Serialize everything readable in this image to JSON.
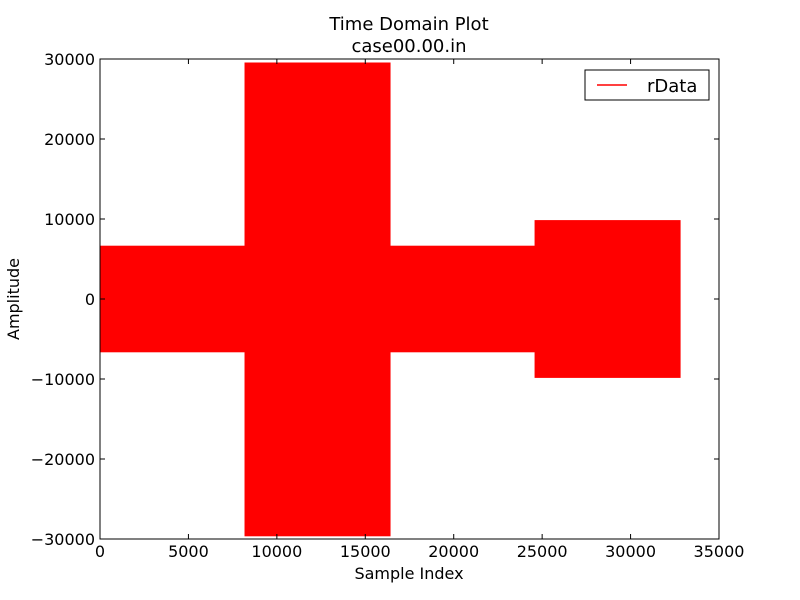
{
  "chart_data": {
    "type": "area",
    "title": "Time Domain Plot",
    "subtitle": "case00.00.in",
    "xlabel": "Sample Index",
    "ylabel": "Amplitude",
    "xlim": [
      0,
      35000
    ],
    "ylim": [
      -30000,
      30000
    ],
    "x_ticks": [
      0,
      5000,
      10000,
      15000,
      20000,
      25000,
      30000,
      35000
    ],
    "y_ticks": [
      -30000,
      -20000,
      -10000,
      0,
      10000,
      20000,
      30000
    ],
    "x_tick_labels": [
      "0",
      "5000",
      "10000",
      "15000",
      "20000",
      "25000",
      "30000",
      "35000"
    ],
    "y_tick_labels": [
      "−30000",
      "−20000",
      "−10000",
      "0",
      "10000",
      "20000",
      "30000"
    ],
    "grid": false,
    "legend_position": "top-right",
    "series": [
      {
        "name": "rData",
        "color": "#ff0000",
        "envelope": [
          {
            "x_start": 0,
            "x_end": 8200,
            "min": -6600,
            "max": 6600
          },
          {
            "x_start": 8200,
            "x_end": 16400,
            "min": -29600,
            "max": 29500
          },
          {
            "x_start": 16400,
            "x_end": 24600,
            "min": -6600,
            "max": 6600
          },
          {
            "x_start": 24600,
            "x_end": 32800,
            "min": -9800,
            "max": 9800
          }
        ]
      }
    ]
  }
}
